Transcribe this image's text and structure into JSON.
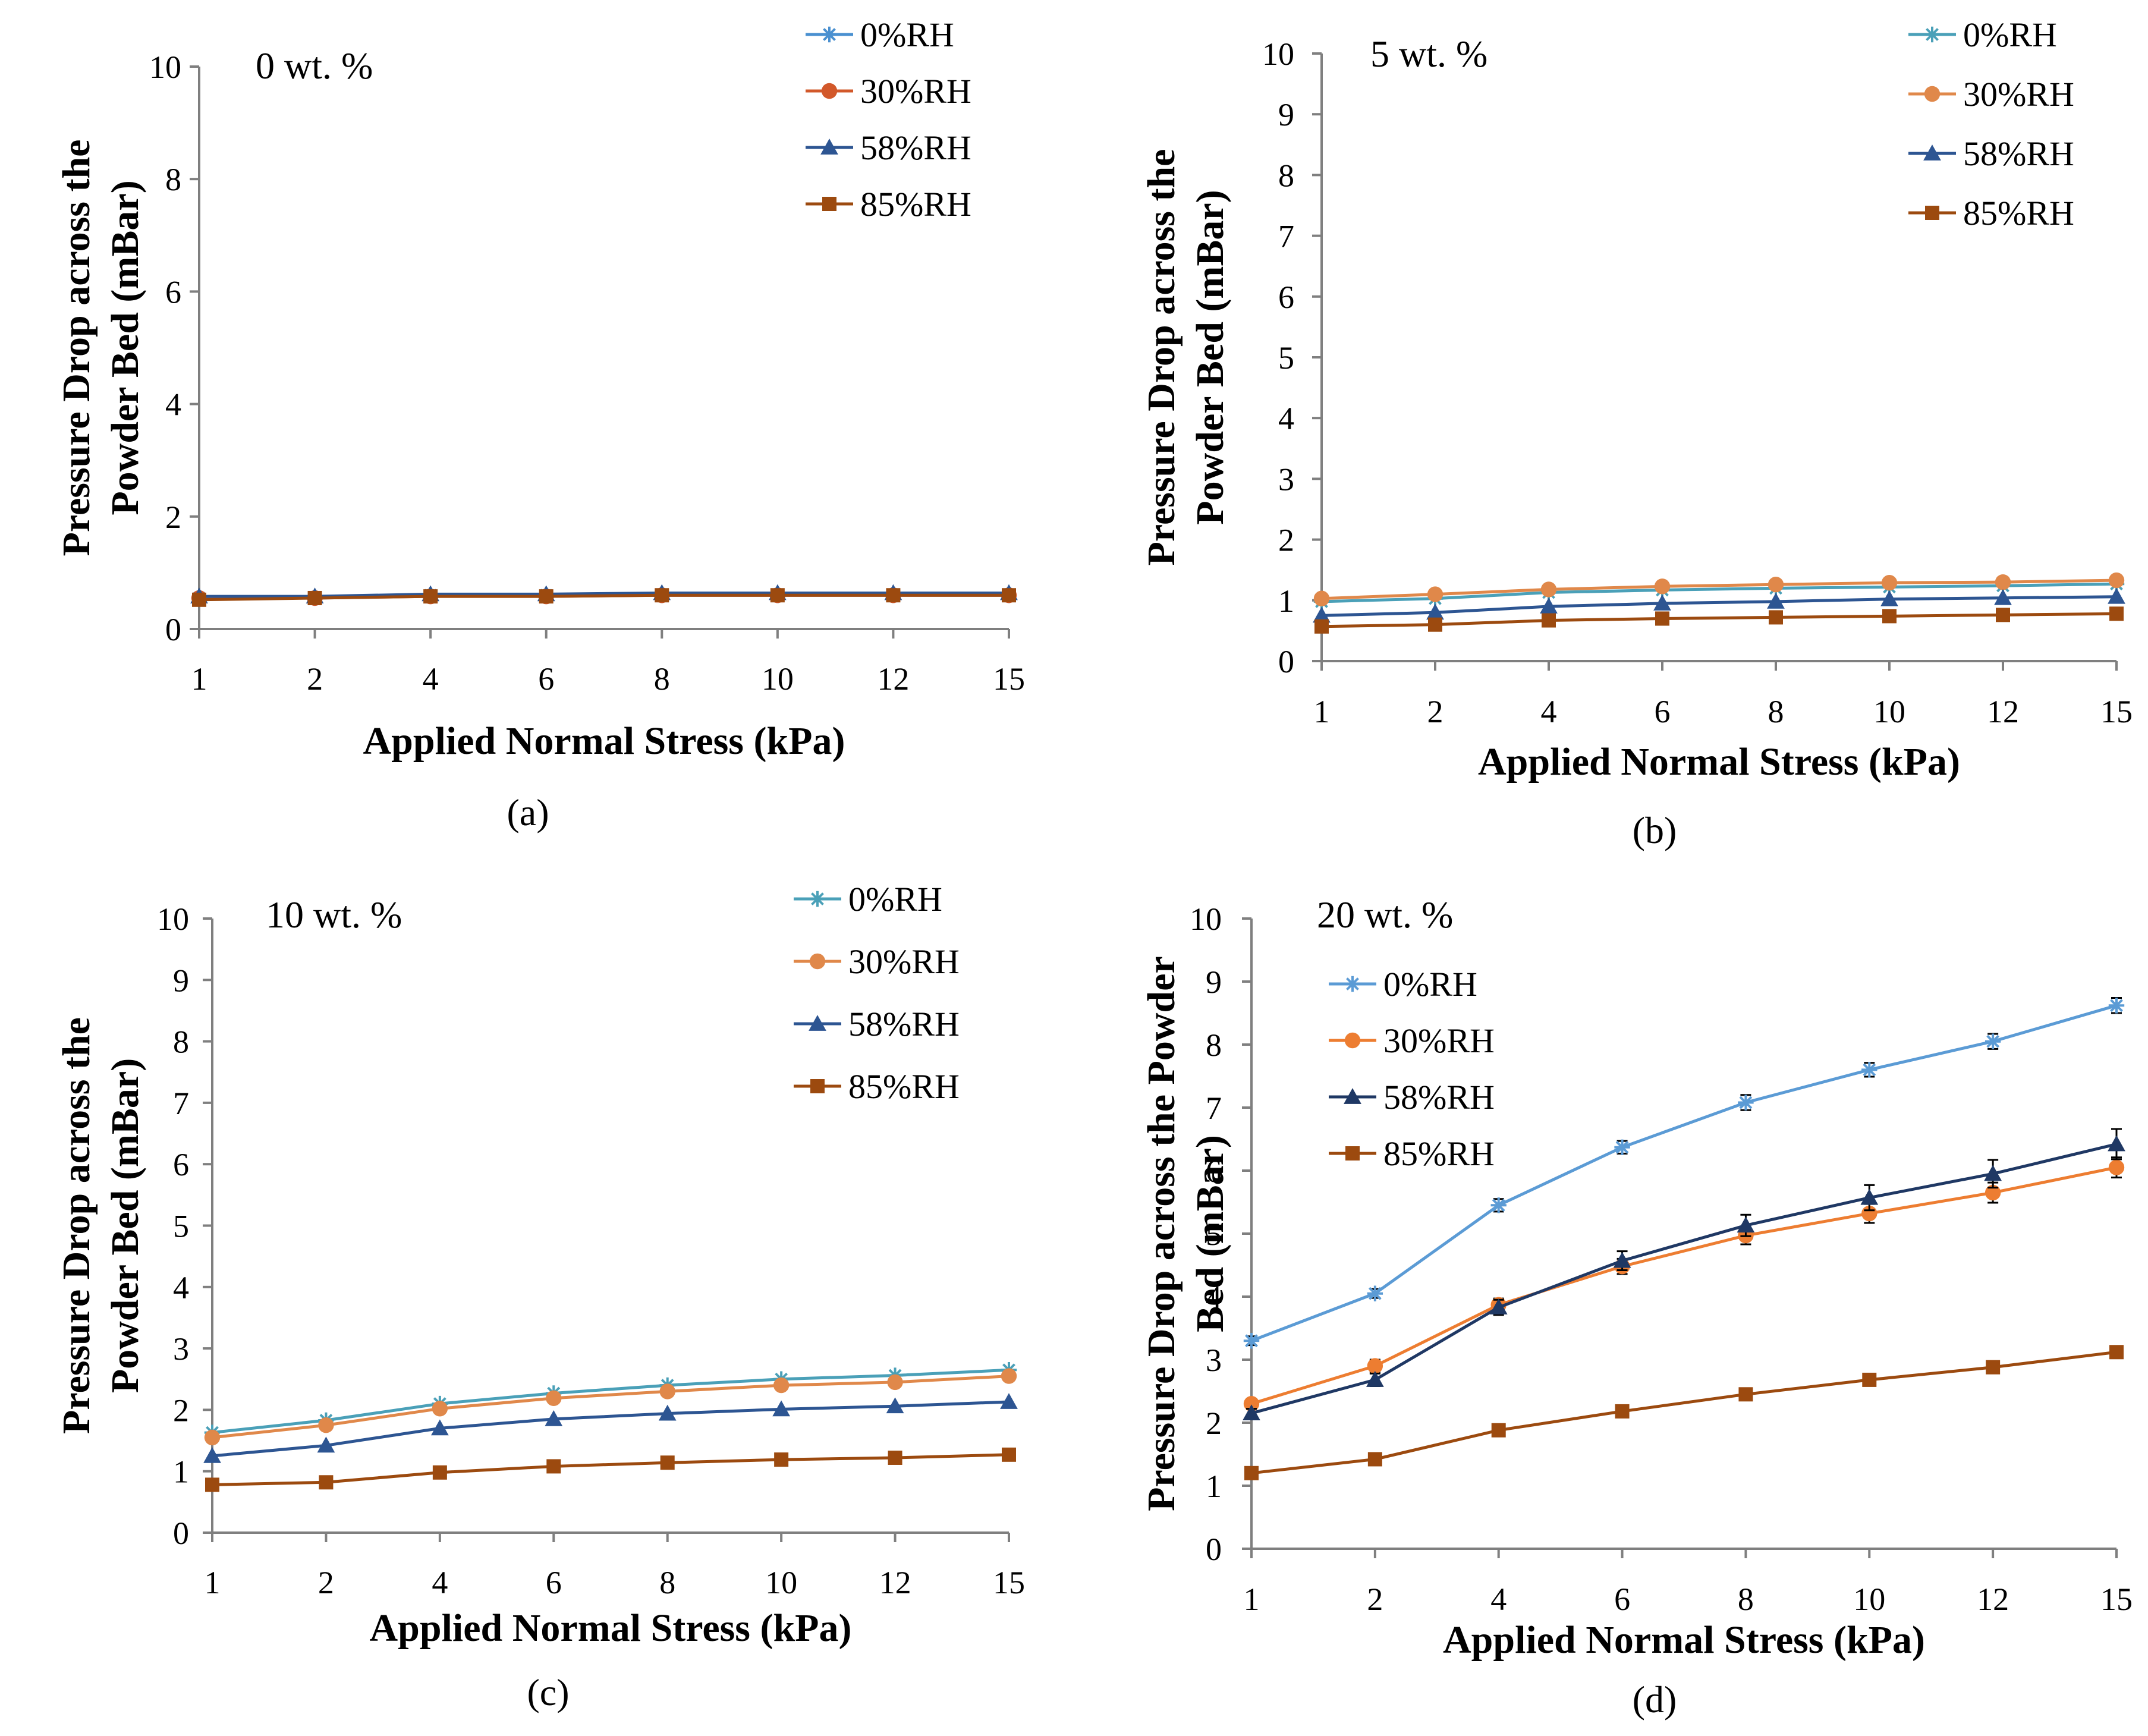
{
  "chart_data": [
    {
      "type": "line",
      "panel": "a",
      "panel_label": "(a)",
      "annotation": "0 wt. %",
      "xlabel": "Applied Normal Stress (kPa)",
      "ylabel_lines": [
        "Pressure Drop across the",
        "Powder Bed (mBar)"
      ],
      "categories": [
        "1",
        "2",
        "4",
        "6",
        "8",
        "10",
        "12",
        "15"
      ],
      "ylim": [
        0,
        10
      ],
      "yticks": [
        0,
        2,
        4,
        6,
        8,
        10
      ],
      "error_bars": false,
      "series": [
        {
          "name": "0%RH",
          "color": "#4a90d0",
          "marker": "star",
          "values": [
            0.55,
            0.55,
            0.6,
            0.6,
            0.6,
            0.6,
            0.6,
            0.6
          ]
        },
        {
          "name": "30%RH",
          "color": "#d2582a",
          "marker": "circle",
          "values": [
            0.55,
            0.55,
            0.58,
            0.58,
            0.6,
            0.6,
            0.6,
            0.6
          ]
        },
        {
          "name": "58%RH",
          "color": "#2d5592",
          "marker": "triangle",
          "values": [
            0.58,
            0.58,
            0.62,
            0.62,
            0.64,
            0.64,
            0.64,
            0.64
          ]
        },
        {
          "name": "85%RH",
          "color": "#9c4a0f",
          "marker": "square",
          "values": [
            0.52,
            0.55,
            0.58,
            0.58,
            0.6,
            0.6,
            0.6,
            0.6
          ]
        }
      ]
    },
    {
      "type": "line",
      "panel": "b",
      "panel_label": "(b)",
      "annotation": "5 wt. %",
      "xlabel": "Applied Normal Stress (kPa)",
      "ylabel_lines": [
        "Pressure Drop across the",
        "Powder Bed (mBar)"
      ],
      "categories": [
        "1",
        "2",
        "4",
        "6",
        "8",
        "10",
        "12",
        "15"
      ],
      "ylim": [
        0,
        10
      ],
      "yticks": [
        0,
        1,
        2,
        3,
        4,
        5,
        6,
        7,
        8,
        9,
        10
      ],
      "error_bars": false,
      "series": [
        {
          "name": "0%RH",
          "color": "#4aa0b8",
          "marker": "star",
          "values": [
            0.98,
            1.03,
            1.13,
            1.17,
            1.2,
            1.22,
            1.24,
            1.27
          ]
        },
        {
          "name": "30%RH",
          "color": "#e0884a",
          "marker": "circle",
          "values": [
            1.03,
            1.1,
            1.18,
            1.23,
            1.26,
            1.29,
            1.3,
            1.33
          ]
        },
        {
          "name": "58%RH",
          "color": "#2d5592",
          "marker": "triangle",
          "values": [
            0.75,
            0.8,
            0.9,
            0.95,
            0.98,
            1.02,
            1.04,
            1.06
          ]
        },
        {
          "name": "85%RH",
          "color": "#9c4a0f",
          "marker": "square",
          "values": [
            0.57,
            0.6,
            0.67,
            0.7,
            0.72,
            0.74,
            0.76,
            0.78
          ]
        }
      ]
    },
    {
      "type": "line",
      "panel": "c",
      "panel_label": "(c)",
      "annotation": "10 wt. %",
      "xlabel": "Applied Normal Stress (kPa)",
      "ylabel_lines": [
        "Pressure Drop across the",
        "Powder Bed (mBar)"
      ],
      "categories": [
        "1",
        "2",
        "4",
        "6",
        "8",
        "10",
        "12",
        "15"
      ],
      "ylim": [
        0,
        10
      ],
      "yticks": [
        0,
        1,
        2,
        3,
        4,
        5,
        6,
        7,
        8,
        9,
        10
      ],
      "error_bars": false,
      "series": [
        {
          "name": "0%RH",
          "color": "#4aa0b8",
          "marker": "star",
          "values": [
            1.63,
            1.83,
            2.1,
            2.27,
            2.4,
            2.5,
            2.56,
            2.65
          ]
        },
        {
          "name": "30%RH",
          "color": "#e0884a",
          "marker": "circle",
          "values": [
            1.55,
            1.75,
            2.02,
            2.19,
            2.3,
            2.4,
            2.45,
            2.55
          ]
        },
        {
          "name": "58%RH",
          "color": "#2d5592",
          "marker": "triangle",
          "values": [
            1.25,
            1.42,
            1.7,
            1.85,
            1.94,
            2.01,
            2.06,
            2.13
          ]
        },
        {
          "name": "85%RH",
          "color": "#9c4a0f",
          "marker": "square",
          "values": [
            0.78,
            0.82,
            0.98,
            1.08,
            1.14,
            1.19,
            1.22,
            1.27
          ]
        }
      ]
    },
    {
      "type": "line",
      "panel": "d",
      "panel_label": "(d)",
      "annotation": "20 wt. %",
      "xlabel": "Applied Normal Stress (kPa)",
      "ylabel_lines": [
        "Pressure Drop across the Powder",
        "Bed (mBar)"
      ],
      "categories": [
        "1",
        "2",
        "4",
        "6",
        "8",
        "10",
        "12",
        "15"
      ],
      "ylim": [
        0,
        10
      ],
      "yticks": [
        0,
        1,
        2,
        3,
        4,
        5,
        6,
        7,
        8,
        9,
        10
      ],
      "error_bars": true,
      "series": [
        {
          "name": "0%RH",
          "color": "#5b9bd5",
          "marker": "star",
          "values": [
            3.3,
            4.05,
            5.45,
            6.37,
            7.08,
            7.6,
            8.05,
            8.62
          ],
          "errors": [
            0.07,
            0.07,
            0.1,
            0.1,
            0.12,
            0.11,
            0.12,
            0.12
          ]
        },
        {
          "name": "30%RH",
          "color": "#ed7d31",
          "marker": "circle",
          "values": [
            2.3,
            2.9,
            3.87,
            4.48,
            4.97,
            5.32,
            5.65,
            6.05
          ],
          "errors": [
            0.08,
            0.1,
            0.1,
            0.12,
            0.14,
            0.15,
            0.16,
            0.16
          ]
        },
        {
          "name": "58%RH",
          "color": "#1f3864",
          "marker": "triangle",
          "values": [
            2.15,
            2.68,
            3.83,
            4.57,
            5.13,
            5.57,
            5.95,
            6.42
          ],
          "errors": [
            0.07,
            0.1,
            0.12,
            0.15,
            0.17,
            0.2,
            0.22,
            0.24
          ]
        },
        {
          "name": "85%RH",
          "color": "#9c4a0f",
          "marker": "square",
          "values": [
            1.2,
            1.42,
            1.88,
            2.18,
            2.45,
            2.68,
            2.88,
            3.12
          ],
          "errors": [
            0.03,
            0.03,
            0.04,
            0.04,
            0.04,
            0.04,
            0.04,
            0.05
          ]
        }
      ]
    }
  ]
}
